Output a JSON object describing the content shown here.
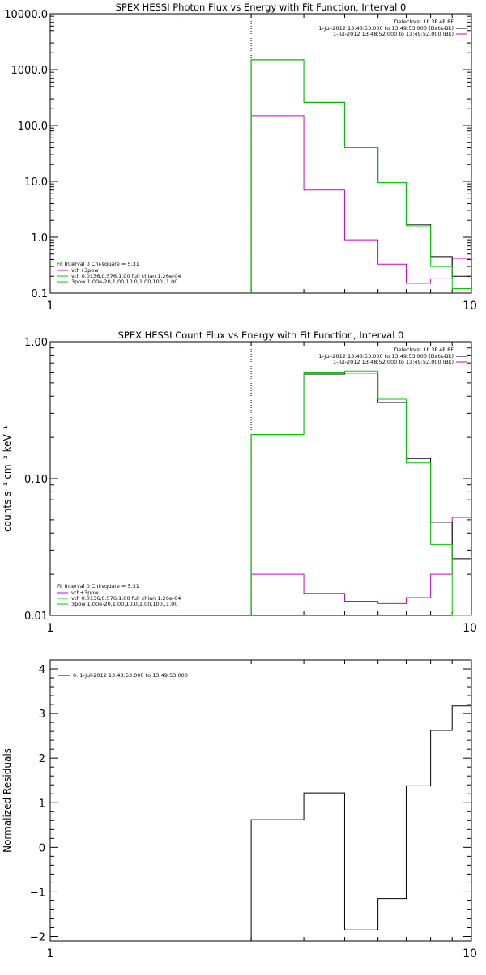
{
  "colors": {
    "data": "#000000",
    "model": "#00cc00",
    "background": "#cc00cc",
    "axis": "#000000"
  },
  "chart_data": [
    {
      "type": "line",
      "title": "SPEX HESSI Photon Flux vs Energy with Fit Function, Interval 0",
      "xlabel": "",
      "ylabel": "",
      "xscale": "log",
      "yscale": "log",
      "xlim": [
        1,
        10
      ],
      "ylim": [
        0.1,
        10000
      ],
      "xticks": [
        "1",
        "10"
      ],
      "yticks": [
        "0.1",
        "1.0",
        "10.0",
        "100.0",
        "1000.0",
        "10000.0"
      ],
      "vline_x": 3,
      "legend_top": {
        "header": "Detectors: 1F 3F 4F 8F",
        "lines": [
          "1-Jul-2012 13:48:53.000 to 13:49:53.000 (Data-Bk)",
          "1-Jul-2012 13:48:52.000 to 13:49:52.000 (Bk)"
        ]
      },
      "legend_bottom": {
        "header": "Fit Interval 0   Chi-square = 5.31",
        "lines": [
          "vth+3pow",
          "vth 0.0136,0.576,1.00  full chian 1.26e-04",
          "3pow 1.00e-20,1.00,10.0,1.00,100.,1.00"
        ]
      },
      "bin_edges": [
        3,
        4,
        5,
        6,
        7,
        8,
        9,
        10
      ],
      "series": [
        {
          "role": "data",
          "values": [
            1500,
            260,
            40,
            9.5,
            1.7,
            0.45,
            0.2
          ]
        },
        {
          "role": "model",
          "values": [
            1500,
            260,
            40,
            9.5,
            1.6,
            0.3,
            0.12
          ]
        },
        {
          "role": "background",
          "values": [
            150,
            7,
            0.9,
            0.33,
            0.15,
            0.18,
            0.42
          ]
        }
      ]
    },
    {
      "type": "line",
      "title": "SPEX HESSI Count Flux vs Energy with Fit Function, Interval 0",
      "xlabel": "",
      "ylabel": "counts s⁻¹ cm⁻² keV⁻¹",
      "xscale": "log",
      "yscale": "log",
      "xlim": [
        1,
        10
      ],
      "ylim": [
        0.01,
        1
      ],
      "xticks": [
        "1",
        "10"
      ],
      "yticks": [
        "0.01",
        "0.10",
        "1.00"
      ],
      "vline_x": 3,
      "legend_top": {
        "header": "Detectors: 1F 3F 4F 8F",
        "lines": [
          "1-Jul-2012 13:48:53.000 to 13:49:53.000 (Data-Bk)",
          "1-Jul-2012 13:48:52.000 to 13:49:52.000 (Bk)"
        ]
      },
      "legend_bottom": {
        "header": "Fit Interval 0   Chi-square = 5.31",
        "lines": [
          "vth+3pow",
          "vth 0.0136,0.576,1.00  full chian 1.26e-04",
          "3pow 1.00e-20,1.00,10.0,1.00,100.,1.00"
        ]
      },
      "bin_edges": [
        3,
        4,
        5,
        6,
        7,
        8,
        9,
        10
      ],
      "series": [
        {
          "role": "data",
          "values": [
            0.21,
            0.58,
            0.59,
            0.36,
            0.14,
            0.048,
            0.026
          ]
        },
        {
          "role": "model",
          "values": [
            0.21,
            0.6,
            0.61,
            0.38,
            0.13,
            0.033,
            0.0085
          ]
        },
        {
          "role": "background",
          "values": [
            0.02,
            0.0145,
            0.0127,
            0.0122,
            0.0135,
            0.02,
            0.052
          ]
        }
      ]
    },
    {
      "type": "line",
      "title": "",
      "xlabel": "",
      "ylabel": "Normalized Residuals",
      "xscale": "log",
      "yscale": "linear",
      "xlim": [
        1,
        10
      ],
      "ylim": [
        -2.1,
        4.2
      ],
      "xticks": [
        "1",
        "10"
      ],
      "yticks": [
        "−2",
        "−1",
        "0",
        "1",
        "2",
        "3",
        "4"
      ],
      "legend": "0. 1-Jul-2012 13:48:53.000 to 13:49:53.000",
      "bin_edges": [
        3,
        4,
        5,
        6,
        7,
        8,
        9,
        10
      ],
      "series": [
        {
          "role": "data",
          "values": [
            0.62,
            1.22,
            -1.85,
            -1.15,
            1.38,
            2.62,
            3.17
          ]
        }
      ]
    }
  ]
}
